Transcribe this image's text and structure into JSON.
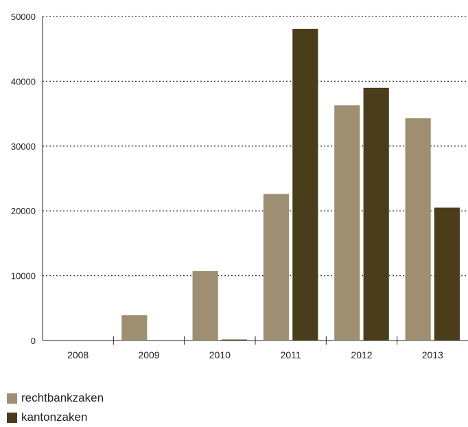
{
  "chart_data": {
    "type": "bar",
    "categories": [
      "2008",
      "2009",
      "2010",
      "2011",
      "2012",
      "2013"
    ],
    "series": [
      {
        "name": "rechtbankzaken",
        "color": "#9e8f72",
        "values": [
          100,
          3900,
          10700,
          22600,
          36300,
          34300
        ]
      },
      {
        "name": "kantonzaken",
        "color": "#4a3d1a",
        "values": [
          0,
          0,
          150,
          48100,
          39000,
          20500
        ]
      }
    ],
    "y_ticks": [
      "0",
      "10000",
      "20000",
      "30000",
      "40000",
      "50000"
    ],
    "ylim": [
      0,
      50000
    ],
    "grid": true,
    "legend_position": "bottom-left"
  }
}
